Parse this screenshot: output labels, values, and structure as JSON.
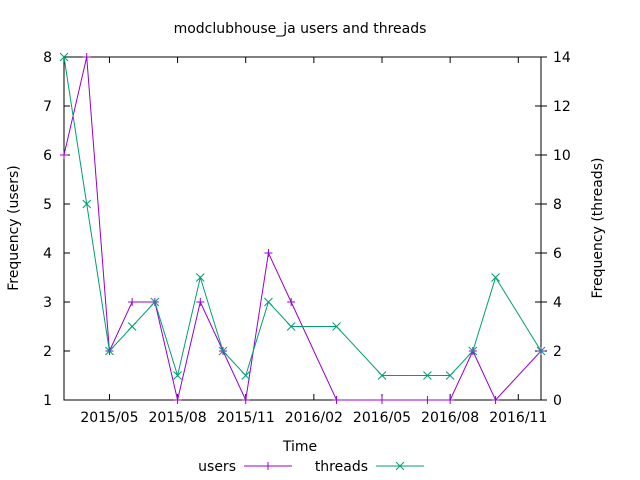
{
  "chart_data": {
    "type": "line",
    "title": "modclubhouse_ja users and threads",
    "xlabel": "Time",
    "ylabel": "Frequency (users)",
    "y2label": "Frequency (threads)",
    "x": [
      "2015-03",
      "2015-04",
      "2015-05",
      "2015-06",
      "2015-07",
      "2015-08",
      "2015-09",
      "2015-10",
      "2015-11",
      "2015-12",
      "2016-01",
      "2016-02",
      "2016-03",
      "2016-04",
      "2016-05",
      "2016-06",
      "2016-07",
      "2016-08",
      "2016-09",
      "2016-10",
      "2016-11",
      "2016-12"
    ],
    "xticks": [
      "2015/05",
      "2015/08",
      "2015/11",
      "2016/02",
      "2016/05",
      "2016/08",
      "2016/11"
    ],
    "ylim": [
      1,
      8
    ],
    "yticks": [
      "1",
      "2",
      "3",
      "4",
      "5",
      "6",
      "7",
      "8"
    ],
    "y2lim": [
      0,
      14
    ],
    "y2ticks": [
      "0",
      "2",
      "4",
      "6",
      "8",
      "10",
      "12",
      "14"
    ],
    "legend_position": "bottom",
    "grid": false,
    "series": [
      {
        "name": "users",
        "axis": "left",
        "color": "#9400d3",
        "marker": "plus",
        "x": [
          "2015-03",
          "2015-04",
          "2015-05",
          "2015-06",
          "2015-07",
          "2015-08",
          "2015-09",
          "2015-10",
          "2015-11",
          "2015-12",
          "2016-01",
          "2016-03",
          "2016-05",
          "2016-07",
          "2016-08",
          "2016-09",
          "2016-10",
          "2016-12"
        ],
        "values": [
          6,
          8,
          2,
          3,
          3,
          1,
          3,
          2,
          1,
          4,
          3,
          1,
          1,
          1,
          1,
          2,
          1,
          2
        ]
      },
      {
        "name": "threads",
        "axis": "right",
        "color": "#009e73",
        "marker": "cross",
        "x": [
          "2015-03",
          "2015-04",
          "2015-05",
          "2015-06",
          "2015-07",
          "2015-08",
          "2015-09",
          "2015-10",
          "2015-11",
          "2015-12",
          "2016-01",
          "2016-03",
          "2016-05",
          "2016-07",
          "2016-08",
          "2016-09",
          "2016-10",
          "2016-12"
        ],
        "values": [
          14,
          8,
          2,
          3,
          4,
          1,
          5,
          2,
          1,
          4,
          3,
          3,
          1,
          1,
          1,
          2,
          5,
          2
        ]
      }
    ]
  }
}
